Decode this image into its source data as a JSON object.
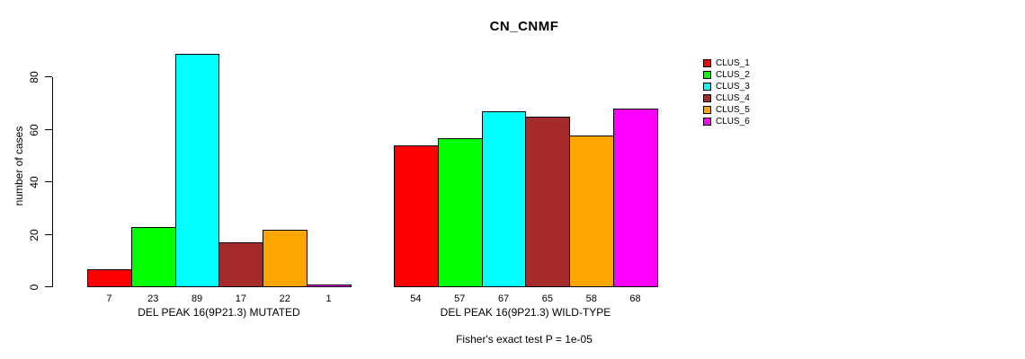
{
  "figure": {
    "title": "CN_CNMF",
    "y_axis_title": "number of cases",
    "annotation": "Fisher's exact test P = 1e-05"
  },
  "chart_data": {
    "type": "bar",
    "title": "CN_CNMF",
    "xlabel": "",
    "ylabel": "number of cases",
    "ylim": [
      0,
      89
    ],
    "yticks": [
      0,
      20,
      40,
      60,
      80
    ],
    "grid": false,
    "legend_position": "right",
    "categories": [
      "CLUS_1",
      "CLUS_2",
      "CLUS_3",
      "CLUS_4",
      "CLUS_5",
      "CLUS_6"
    ],
    "colors": [
      "#FF0000",
      "#00FF00",
      "#00FFFF",
      "#A52A2A",
      "#FFA500",
      "#FF00FF"
    ],
    "groups": [
      {
        "label": "DEL PEAK 16(9P21.3) MUTATED",
        "values": [
          7,
          23,
          89,
          17,
          22,
          1
        ]
      },
      {
        "label": "DEL PEAK 16(9P21.3) WILD-TYPE",
        "values": [
          54,
          57,
          67,
          65,
          58,
          68
        ]
      }
    ],
    "legend": {
      "entries": [
        {
          "label": "CLUS_1",
          "color": "#FF0000"
        },
        {
          "label": "CLUS_2",
          "color": "#00FF00"
        },
        {
          "label": "CLUS_3",
          "color": "#00FFFF"
        },
        {
          "label": "CLUS_4",
          "color": "#A52A2A"
        },
        {
          "label": "CLUS_5",
          "color": "#FFA500"
        },
        {
          "label": "CLUS_6",
          "color": "#FF00FF"
        }
      ]
    },
    "annotation": "Fisher's exact test P = 1e-05"
  }
}
